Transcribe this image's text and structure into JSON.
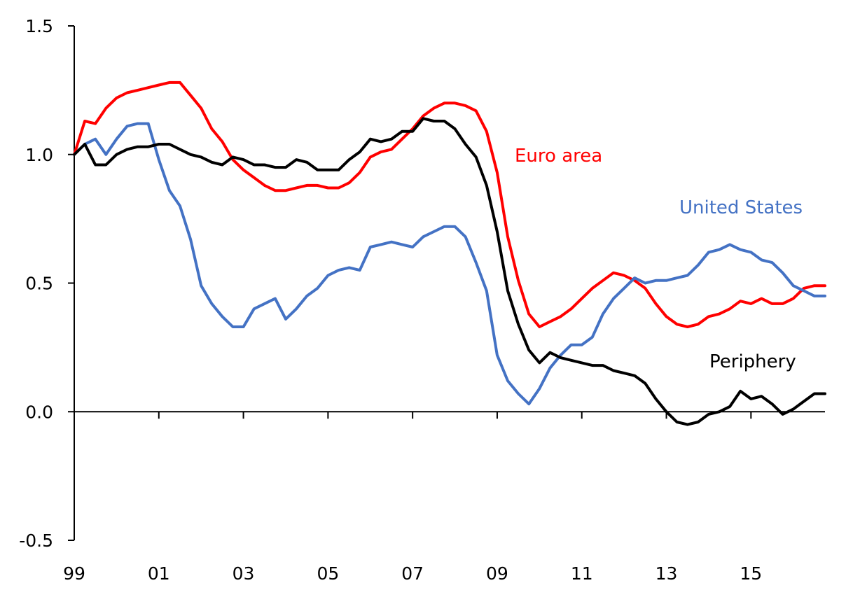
{
  "chart_data": {
    "type": "line",
    "title": "",
    "xlabel": "",
    "ylabel": "",
    "ylim": [
      -0.5,
      1.5
    ],
    "yticks": [
      1.5,
      1.0,
      0.5,
      0.0,
      -0.5
    ],
    "ytick_labels": [
      "1.5",
      "1.0",
      "0.5",
      "0.0",
      "-0.5"
    ],
    "xlim": [
      1999.0,
      2016.75
    ],
    "xtick_positions": [
      1999,
      2001,
      2003,
      2005,
      2007,
      2009,
      2011,
      2013,
      2015
    ],
    "xtick_labels": [
      "99",
      "01",
      "03",
      "05",
      "07",
      "09",
      "11",
      "13",
      "15"
    ],
    "grid": false,
    "legend": "inline labels",
    "series": [
      {
        "name": "Euro area",
        "color": "#ff0000",
        "x": [
          1999.0,
          1999.25,
          1999.5,
          1999.75,
          2000.0,
          2000.25,
          2000.5,
          2000.75,
          2001.0,
          2001.25,
          2001.5,
          2001.75,
          2002.0,
          2002.25,
          2002.5,
          2002.75,
          2003.0,
          2003.25,
          2003.5,
          2003.75,
          2004.0,
          2004.25,
          2004.5,
          2004.75,
          2005.0,
          2005.25,
          2005.5,
          2005.75,
          2006.0,
          2006.25,
          2006.5,
          2006.75,
          2007.0,
          2007.25,
          2007.5,
          2007.75,
          2008.0,
          2008.25,
          2008.5,
          2008.75,
          2009.0,
          2009.25,
          2009.5,
          2009.75,
          2010.0,
          2010.25,
          2010.5,
          2010.75,
          2011.0,
          2011.25,
          2011.5,
          2011.75,
          2012.0,
          2012.25,
          2012.5,
          2012.75,
          2013.0,
          2013.25,
          2013.5,
          2013.75,
          2014.0,
          2014.25,
          2014.5,
          2014.75,
          2015.0,
          2015.25,
          2015.5,
          2015.75,
          2016.0,
          2016.25,
          2016.5,
          2016.75
        ],
        "y": [
          1.0,
          1.13,
          1.12,
          1.18,
          1.22,
          1.24,
          1.25,
          1.26,
          1.27,
          1.28,
          1.28,
          1.23,
          1.18,
          1.1,
          1.05,
          0.98,
          0.94,
          0.91,
          0.88,
          0.86,
          0.86,
          0.87,
          0.88,
          0.88,
          0.87,
          0.87,
          0.89,
          0.93,
          0.99,
          1.01,
          1.02,
          1.06,
          1.1,
          1.15,
          1.18,
          1.2,
          1.2,
          1.19,
          1.17,
          1.09,
          0.93,
          0.68,
          0.51,
          0.38,
          0.33,
          0.35,
          0.37,
          0.4,
          0.44,
          0.48,
          0.51,
          0.54,
          0.53,
          0.51,
          0.48,
          0.42,
          0.37,
          0.34,
          0.33,
          0.34,
          0.37,
          0.38,
          0.4,
          0.43,
          0.42,
          0.44,
          0.42,
          0.42,
          0.44,
          0.48,
          0.49,
          0.49
        ]
      },
      {
        "name": "United States",
        "color": "#4472c4",
        "x": [
          1999.0,
          1999.25,
          1999.5,
          1999.75,
          2000.0,
          2000.25,
          2000.5,
          2000.75,
          2001.0,
          2001.25,
          2001.5,
          2001.75,
          2002.0,
          2002.25,
          2002.5,
          2002.75,
          2003.0,
          2003.25,
          2003.5,
          2003.75,
          2004.0,
          2004.25,
          2004.5,
          2004.75,
          2005.0,
          2005.25,
          2005.5,
          2005.75,
          2006.0,
          2006.25,
          2006.5,
          2006.75,
          2007.0,
          2007.25,
          2007.5,
          2007.75,
          2008.0,
          2008.25,
          2008.5,
          2008.75,
          2009.0,
          2009.25,
          2009.5,
          2009.75,
          2010.0,
          2010.25,
          2010.5,
          2010.75,
          2011.0,
          2011.25,
          2011.5,
          2011.75,
          2012.0,
          2012.25,
          2012.5,
          2012.75,
          2013.0,
          2013.25,
          2013.5,
          2013.75,
          2014.0,
          2014.25,
          2014.5,
          2014.75,
          2015.0,
          2015.25,
          2015.5,
          2015.75,
          2016.0,
          2016.25,
          2016.5,
          2016.75
        ],
        "y": [
          1.0,
          1.04,
          1.06,
          1.0,
          1.06,
          1.11,
          1.12,
          1.12,
          0.98,
          0.86,
          0.8,
          0.67,
          0.49,
          0.42,
          0.37,
          0.33,
          0.33,
          0.4,
          0.42,
          0.44,
          0.36,
          0.4,
          0.45,
          0.48,
          0.53,
          0.55,
          0.56,
          0.55,
          0.64,
          0.65,
          0.66,
          0.65,
          0.64,
          0.68,
          0.7,
          0.72,
          0.72,
          0.68,
          0.58,
          0.47,
          0.22,
          0.12,
          0.07,
          0.03,
          0.09,
          0.17,
          0.22,
          0.26,
          0.26,
          0.29,
          0.38,
          0.44,
          0.48,
          0.52,
          0.5,
          0.51,
          0.51,
          0.52,
          0.53,
          0.57,
          0.62,
          0.63,
          0.65,
          0.63,
          0.62,
          0.59,
          0.58,
          0.54,
          0.49,
          0.47,
          0.45,
          0.45
        ]
      },
      {
        "name": "Periphery",
        "color": "#000000",
        "x": [
          1999.0,
          1999.25,
          1999.5,
          1999.75,
          2000.0,
          2000.25,
          2000.5,
          2000.75,
          2001.0,
          2001.25,
          2001.5,
          2001.75,
          2002.0,
          2002.25,
          2002.5,
          2002.75,
          2003.0,
          2003.25,
          2003.5,
          2003.75,
          2004.0,
          2004.25,
          2004.5,
          2004.75,
          2005.0,
          2005.25,
          2005.5,
          2005.75,
          2006.0,
          2006.25,
          2006.5,
          2006.75,
          2007.0,
          2007.25,
          2007.5,
          2007.75,
          2008.0,
          2008.25,
          2008.5,
          2008.75,
          2009.0,
          2009.25,
          2009.5,
          2009.75,
          2010.0,
          2010.25,
          2010.5,
          2010.75,
          2011.0,
          2011.25,
          2011.5,
          2011.75,
          2012.0,
          2012.25,
          2012.5,
          2012.75,
          2013.0,
          2013.25,
          2013.5,
          2013.75,
          2014.0,
          2014.25,
          2014.5,
          2014.75,
          2015.0,
          2015.25,
          2015.5,
          2015.75,
          2016.0,
          2016.25,
          2016.5,
          2016.75
        ],
        "y": [
          1.0,
          1.04,
          0.96,
          0.96,
          1.0,
          1.02,
          1.03,
          1.03,
          1.04,
          1.04,
          1.02,
          1.0,
          0.99,
          0.97,
          0.96,
          0.99,
          0.98,
          0.96,
          0.96,
          0.95,
          0.95,
          0.98,
          0.97,
          0.94,
          0.94,
          0.94,
          0.98,
          1.01,
          1.06,
          1.05,
          1.06,
          1.09,
          1.09,
          1.14,
          1.13,
          1.13,
          1.1,
          1.04,
          0.99,
          0.88,
          0.7,
          0.47,
          0.34,
          0.24,
          0.19,
          0.23,
          0.21,
          0.2,
          0.19,
          0.18,
          0.18,
          0.16,
          0.15,
          0.14,
          0.11,
          0.05,
          0.0,
          -0.04,
          -0.05,
          -0.04,
          -0.01,
          0.0,
          0.02,
          0.08,
          0.05,
          0.06,
          0.03,
          -0.01,
          0.01,
          0.04,
          0.07,
          0.07
        ]
      }
    ]
  }
}
